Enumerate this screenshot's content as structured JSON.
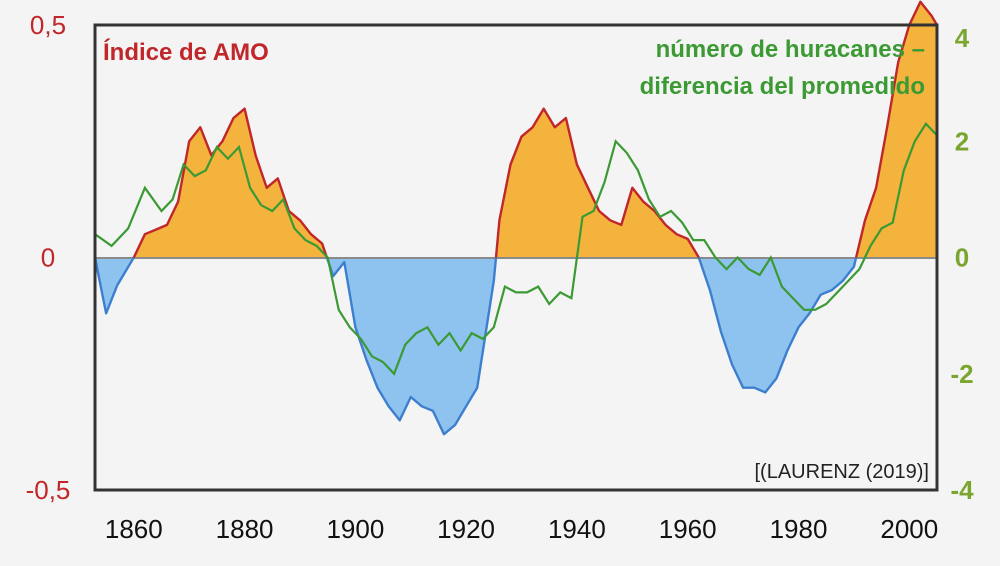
{
  "chart_data": {
    "type": "area",
    "title_left": "Índice de AMO",
    "title_right_line1": "número de huracanes –",
    "title_right_line2": "diferencia del promedido",
    "source": "[(LAURENZ (2019)]",
    "x_ticks": [
      "1860",
      "1880",
      "1900",
      "1920",
      "1940",
      "1960",
      "1980",
      "2000"
    ],
    "xlim": [
      1853,
      2005
    ],
    "left_axis": {
      "ylim": [
        -0.5,
        0.5
      ],
      "ticks": [
        {
          "v": 0.5,
          "label": "0,5"
        },
        {
          "v": 0,
          "label": "0"
        },
        {
          "v": -0.5,
          "label": "-0,5"
        }
      ]
    },
    "right_axis": {
      "ylim": [
        -4,
        4
      ],
      "ticks": [
        {
          "v": 4,
          "label": "4"
        },
        {
          "v": 2,
          "label": "2"
        },
        {
          "v": 0,
          "label": "0"
        },
        {
          "v": -2,
          "label": "-2"
        },
        {
          "v": -4,
          "label": "-4"
        }
      ]
    },
    "colors": {
      "positive_fill": "#f3b33d",
      "negative_fill": "#8fc3ef",
      "amo_line_pos": "#c0262a",
      "amo_line_neg": "#3d7fcf",
      "hurricane_line": "#3b9a33",
      "left_axis_text": "#c0262a",
      "right_axis_text": "#7aa630"
    },
    "series": [
      {
        "name": "Índice de AMO",
        "axis": "left",
        "x": [
          1853,
          1855,
          1857,
          1860,
          1862,
          1864,
          1866,
          1868,
          1870,
          1872,
          1874,
          1876,
          1878,
          1880,
          1882,
          1884,
          1886,
          1888,
          1890,
          1892,
          1894,
          1896,
          1898,
          1900,
          1902,
          1904,
          1906,
          1908,
          1910,
          1912,
          1914,
          1916,
          1918,
          1920,
          1922,
          1925,
          1926,
          1928,
          1930,
          1932,
          1934,
          1936,
          1938,
          1940,
          1942,
          1944,
          1946,
          1948,
          1950,
          1952,
          1954,
          1956,
          1958,
          1960,
          1962,
          1964,
          1966,
          1968,
          1970,
          1972,
          1974,
          1976,
          1978,
          1980,
          1982,
          1984,
          1986,
          1988,
          1990,
          1992,
          1994,
          1996,
          1998,
          2000,
          2002,
          2004,
          2005
        ],
        "values": [
          0.0,
          -0.12,
          -0.06,
          0.0,
          0.05,
          0.06,
          0.07,
          0.12,
          0.25,
          0.28,
          0.22,
          0.25,
          0.3,
          0.32,
          0.22,
          0.15,
          0.17,
          0.1,
          0.08,
          0.05,
          0.03,
          -0.04,
          -0.01,
          -0.15,
          -0.22,
          -0.28,
          -0.32,
          -0.35,
          -0.3,
          -0.32,
          -0.33,
          -0.38,
          -0.36,
          -0.32,
          -0.28,
          -0.05,
          0.08,
          0.2,
          0.26,
          0.28,
          0.32,
          0.28,
          0.3,
          0.2,
          0.15,
          0.1,
          0.08,
          0.07,
          0.15,
          0.12,
          0.1,
          0.07,
          0.05,
          0.04,
          0.0,
          -0.07,
          -0.16,
          -0.23,
          -0.28,
          -0.28,
          -0.29,
          -0.26,
          -0.2,
          -0.15,
          -0.12,
          -0.08,
          -0.07,
          -0.05,
          -0.02,
          0.08,
          0.15,
          0.28,
          0.42,
          0.5,
          0.55,
          0.52,
          0.5
        ]
      },
      {
        "name": "número de huracanes – diferencia del promedido",
        "axis": "right",
        "x": [
          1853,
          1856,
          1859,
          1862,
          1865,
          1867,
          1869,
          1871,
          1873,
          1875,
          1877,
          1879,
          1881,
          1883,
          1885,
          1887,
          1889,
          1891,
          1893,
          1895,
          1897,
          1899,
          1901,
          1903,
          1905,
          1907,
          1909,
          1911,
          1913,
          1915,
          1917,
          1919,
          1921,
          1923,
          1925,
          1927,
          1929,
          1931,
          1933,
          1935,
          1937,
          1939,
          1941,
          1943,
          1945,
          1947,
          1949,
          1951,
          1953,
          1955,
          1957,
          1959,
          1961,
          1963,
          1965,
          1967,
          1969,
          1971,
          1973,
          1975,
          1977,
          1979,
          1981,
          1983,
          1985,
          1987,
          1989,
          1991,
          1993,
          1995,
          1997,
          1999,
          2001,
          2003,
          2005
        ],
        "values": [
          0.4,
          0.2,
          0.5,
          1.2,
          0.8,
          1.0,
          1.6,
          1.4,
          1.5,
          1.9,
          1.7,
          1.9,
          1.2,
          0.9,
          0.8,
          1.0,
          0.5,
          0.3,
          0.2,
          0.0,
          -0.9,
          -1.2,
          -1.4,
          -1.7,
          -1.8,
          -2.0,
          -1.5,
          -1.3,
          -1.2,
          -1.5,
          -1.3,
          -1.6,
          -1.3,
          -1.4,
          -1.2,
          -0.5,
          -0.6,
          -0.6,
          -0.5,
          -0.8,
          -0.6,
          -0.7,
          0.7,
          0.8,
          1.3,
          2.0,
          1.8,
          1.5,
          1.0,
          0.7,
          0.8,
          0.6,
          0.3,
          0.3,
          0.0,
          -0.2,
          0.0,
          -0.2,
          -0.3,
          0.0,
          -0.5,
          -0.7,
          -0.9,
          -0.9,
          -0.8,
          -0.6,
          -0.4,
          -0.2,
          0.2,
          0.5,
          0.6,
          1.5,
          2.0,
          2.3,
          2.1
        ]
      }
    ]
  }
}
